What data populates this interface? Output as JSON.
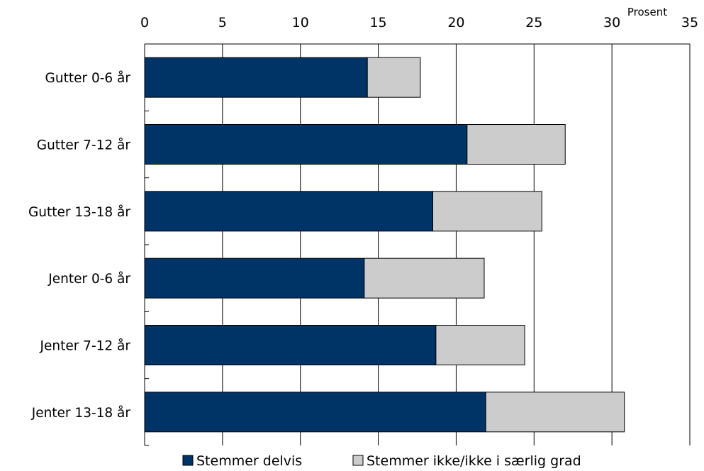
{
  "chart_data": {
    "type": "bar",
    "orientation": "horizontal",
    "stacked": true,
    "categories": [
      "Gutter 0-6 år",
      "Gutter 7-12 år",
      "Gutter 13-18 år",
      "Jenter 0-6 år",
      "Jenter 7-12 år",
      "Jenter 13-18 år"
    ],
    "series": [
      {
        "name": "Stemmer delvis",
        "color": "#003366",
        "values": [
          14.3,
          20.7,
          18.5,
          14.1,
          18.7,
          21.9
        ]
      },
      {
        "name": "Stemmer ikke/ikke i særlig grad",
        "color": "#cccccc",
        "values": [
          3.4,
          6.3,
          7.0,
          7.7,
          5.7,
          8.9
        ]
      }
    ],
    "xlim": [
      0,
      35
    ],
    "xticks": [
      0,
      5,
      10,
      15,
      20,
      25,
      30,
      35
    ],
    "unit_label": "Prosent",
    "grid": true,
    "legend_position": "bottom"
  }
}
